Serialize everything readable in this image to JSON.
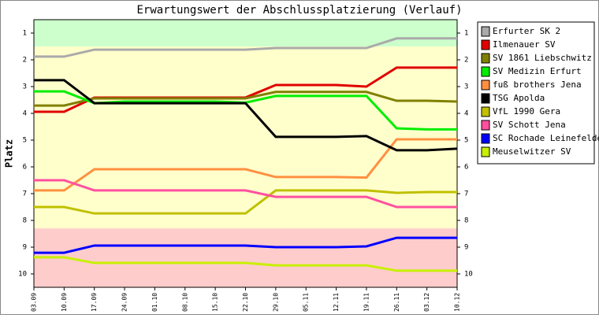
{
  "chart_data": {
    "type": "line",
    "title": "Erwartungswert der Abschlussplatzierung (Verlauf)",
    "y_label": "Platz",
    "categories": [
      "03.09",
      "10.09",
      "17.09",
      "24.09",
      "01.10",
      "08.10",
      "15.10",
      "22.10",
      "29.10",
      "05.11",
      "12.11",
      "19.11",
      "26.11",
      "03.12",
      "10.12"
    ],
    "ylim": [
      10.5,
      0.5
    ],
    "yticks": [
      1,
      2,
      3,
      4,
      5,
      6,
      7,
      8,
      9,
      10
    ],
    "bands": [
      {
        "from": 0.5,
        "to": 1.5,
        "color": "#ccffcc"
      },
      {
        "from": 1.5,
        "to": 8.3,
        "color": "#ffffcc"
      },
      {
        "from": 8.3,
        "to": 10.5,
        "color": "#ffcccc"
      }
    ],
    "series": [
      {
        "name": "Erfurter SK 2",
        "color": "#aaaaaa",
        "values": [
          1.88,
          1.88,
          1.62,
          1.62,
          1.62,
          1.62,
          1.62,
          1.62,
          1.56,
          1.56,
          1.56,
          1.56,
          1.2,
          1.2,
          1.2
        ]
      },
      {
        "name": "Ilmenauer SV",
        "color": "#e00000",
        "values": [
          3.94,
          3.94,
          3.41,
          3.41,
          3.41,
          3.41,
          3.41,
          3.41,
          2.94,
          2.94,
          2.94,
          3.0,
          2.29,
          2.29,
          2.29
        ]
      },
      {
        "name": "SV 1861 Liebschwitz",
        "color": "#808000",
        "values": [
          3.71,
          3.71,
          3.44,
          3.44,
          3.44,
          3.44,
          3.44,
          3.44,
          3.2,
          3.2,
          3.2,
          3.2,
          3.53,
          3.53,
          3.56
        ]
      },
      {
        "name": "SV Medizin Erfurt",
        "color": "#00ee00",
        "values": [
          3.18,
          3.18,
          3.62,
          3.56,
          3.56,
          3.56,
          3.56,
          3.6,
          3.35,
          3.35,
          3.35,
          3.35,
          4.56,
          4.6,
          4.6
        ]
      },
      {
        "name": "fuß brothers Jena",
        "color": "#ff9040",
        "values": [
          6.88,
          6.88,
          6.09,
          6.09,
          6.09,
          6.09,
          6.09,
          6.09,
          6.38,
          6.38,
          6.38,
          6.4,
          4.97,
          4.97,
          4.97
        ]
      },
      {
        "name": "TSG Apolda",
        "color": "#000000",
        "values": [
          2.76,
          2.76,
          3.62,
          3.62,
          3.62,
          3.62,
          3.62,
          3.62,
          4.88,
          4.88,
          4.88,
          4.85,
          5.38,
          5.38,
          5.32
        ]
      },
      {
        "name": "VfL 1990 Gera",
        "color": "#c0c000",
        "values": [
          7.5,
          7.5,
          7.74,
          7.74,
          7.74,
          7.74,
          7.74,
          7.74,
          6.88,
          6.88,
          6.88,
          6.88,
          6.97,
          6.94,
          6.94
        ]
      },
      {
        "name": "SV Schott Jena",
        "color": "#ff50a0",
        "values": [
          6.5,
          6.5,
          6.88,
          6.88,
          6.88,
          6.88,
          6.88,
          6.88,
          7.12,
          7.12,
          7.12,
          7.12,
          7.5,
          7.5,
          7.5
        ]
      },
      {
        "name": "SC Rochade Leinefelde",
        "color": "#0000ff",
        "values": [
          9.21,
          9.21,
          8.94,
          8.94,
          8.94,
          8.94,
          8.94,
          8.94,
          9.0,
          9.0,
          9.0,
          8.97,
          8.65,
          8.65,
          8.65
        ]
      },
      {
        "name": "Meuselwitzer SV",
        "color": "#c8f000",
        "values": [
          9.38,
          9.38,
          9.59,
          9.59,
          9.59,
          9.59,
          9.59,
          9.59,
          9.68,
          9.68,
          9.68,
          9.68,
          9.88,
          9.88,
          9.88
        ]
      }
    ]
  }
}
